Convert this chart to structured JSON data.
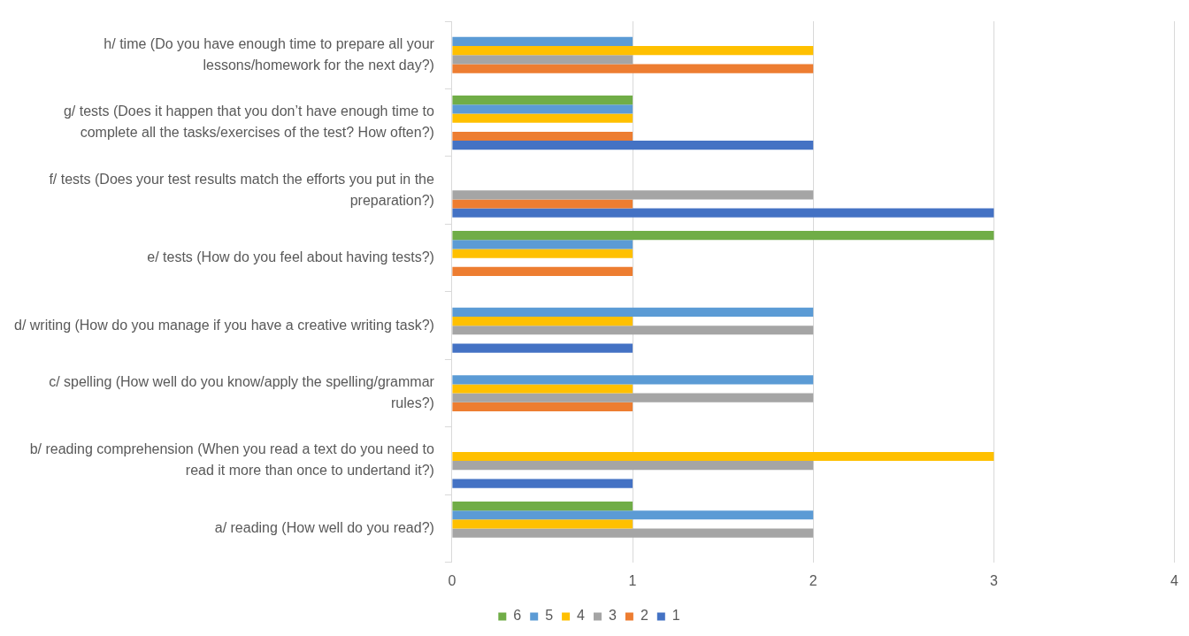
{
  "chart_data": {
    "type": "bar",
    "orientation": "horizontal",
    "categories": [
      "h/ time (Do you have enough time to prepare all your lessons/homework for the next day?)",
      "g/ tests (Does it happen that you don’t have enough time to complete all the tasks/exercises of the test? How often?)",
      "f/ tests (Does your test results match the efforts you put in the preparation?)",
      "e/ tests (How do you feel about having tests?)",
      "d/ writing (How do you manage if you have a creative writing task?)",
      "c/ spelling (How well do you know/apply the spelling/grammar rules?)",
      "b/ reading comprehension (When you read a text do you need to read it more than once to undertand it?)",
      "a/ reading (How well do you read?)"
    ],
    "series": [
      {
        "name": "6",
        "color": "#70ad47",
        "values": [
          0,
          1,
          0,
          3,
          0,
          0,
          0,
          1
        ]
      },
      {
        "name": "5",
        "color": "#5b9bd5",
        "values": [
          1,
          1,
          0,
          1,
          2,
          2,
          0,
          2
        ]
      },
      {
        "name": "4",
        "color": "#ffc000",
        "values": [
          2,
          1,
          0,
          1,
          1,
          1,
          3,
          1
        ]
      },
      {
        "name": "3",
        "color": "#a5a5a5",
        "values": [
          1,
          0,
          2,
          0,
          2,
          2,
          2,
          2
        ]
      },
      {
        "name": "2",
        "color": "#ed7d31",
        "values": [
          2,
          1,
          1,
          1,
          0,
          1,
          0,
          0
        ]
      },
      {
        "name": "1",
        "color": "#4472c4",
        "values": [
          0,
          2,
          3,
          0,
          1,
          0,
          1,
          0
        ]
      }
    ],
    "xlim": [
      0,
      4
    ],
    "xticks": [
      0,
      1,
      2,
      3,
      4
    ],
    "grid": "x",
    "legend": "bottom"
  }
}
